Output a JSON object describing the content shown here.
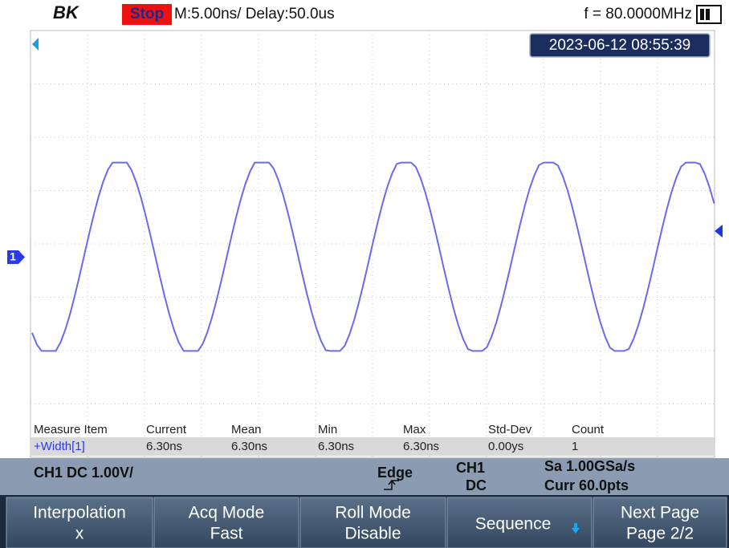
{
  "header": {
    "logo": "BK",
    "run_state": "Stop",
    "timebase": "M:5.00ns/ Delay:50.0us",
    "frequency": "f = 80.0000MHz"
  },
  "timestamp": "2023-06-12 08:55:39",
  "channel_marker": "1",
  "measure": {
    "headers": [
      "Measure Item",
      "Current",
      "Mean",
      "Min",
      "Max",
      "Std-Dev",
      "Count"
    ],
    "rows": [
      [
        "+Width[1]",
        "6.30ns",
        "6.30ns",
        "6.30ns",
        "6.30ns",
        "0.00ys",
        "1"
      ]
    ]
  },
  "status_bar": {
    "channel": "CH1 DC 1.00V/",
    "trigger_type": "Edge",
    "trigger_source": "CH1",
    "coupling": "DC",
    "sample_rate": "Sa 1.00GSa/s",
    "memory": "Curr 60.0pts"
  },
  "menu": [
    {
      "label": "Interpolation",
      "value": "x"
    },
    {
      "label": "Acq Mode",
      "value": "Fast"
    },
    {
      "label": "Roll Mode",
      "value": "Disable"
    },
    {
      "label": "Sequence"
    },
    {
      "label": "Next Page",
      "value": "Page 2/2"
    }
  ]
}
